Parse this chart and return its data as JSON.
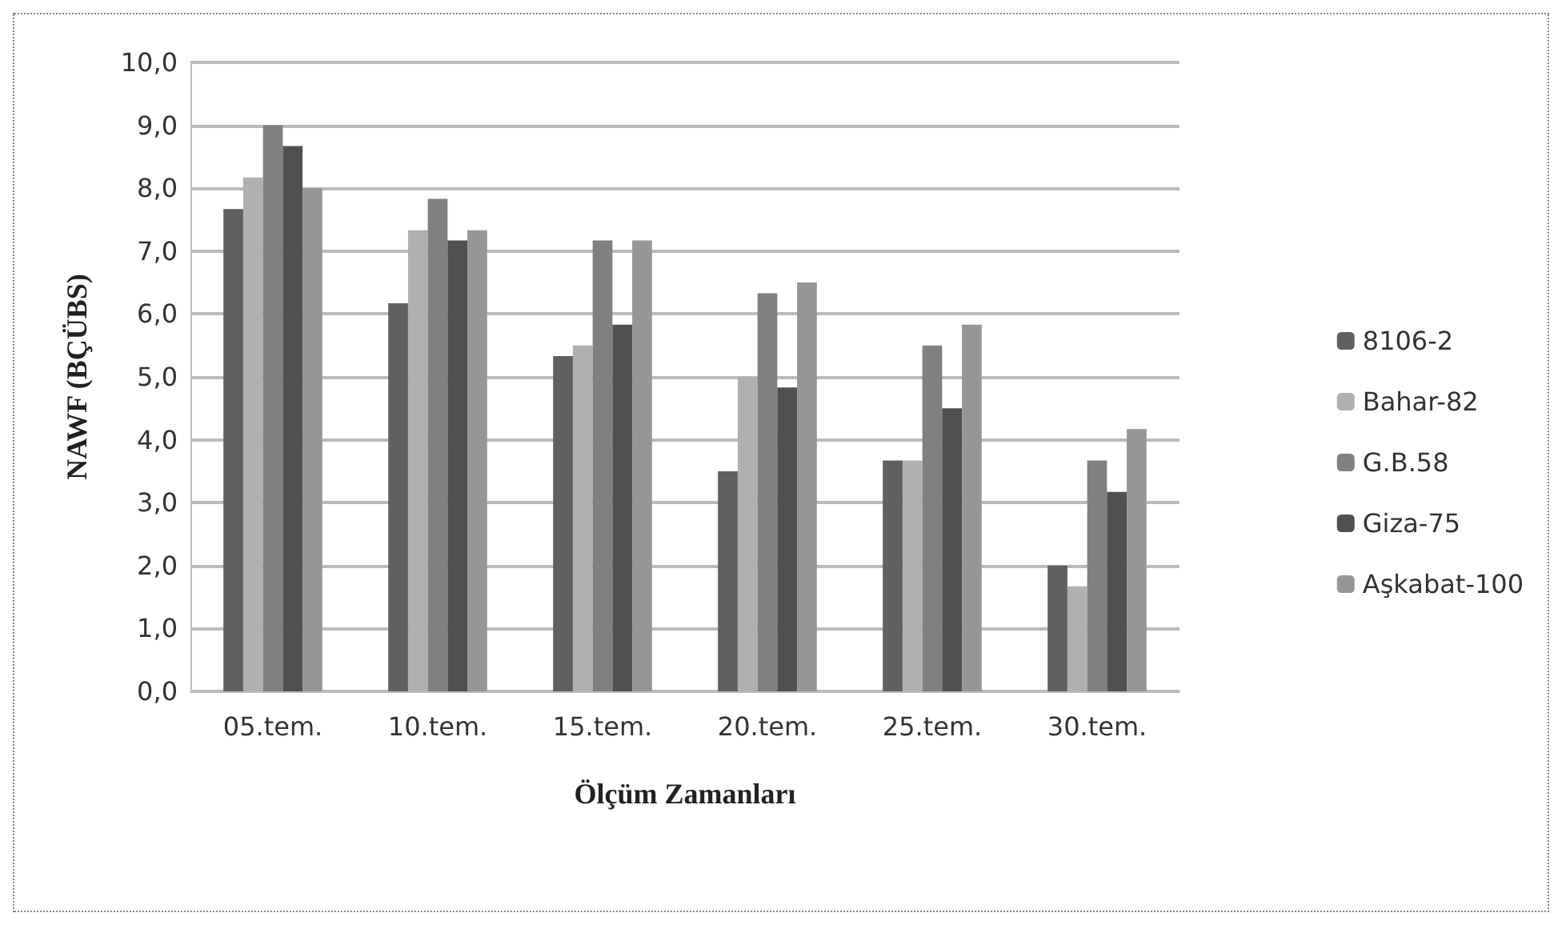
{
  "chart_data": {
    "type": "bar",
    "xlabel": "Ölçüm Zamanları",
    "ylabel": "NAWF (BÇÜBS)",
    "categories": [
      "05.tem.",
      "10.tem.",
      "15.tem.",
      "20.tem.",
      "25.tem.",
      "30.tem."
    ],
    "series": [
      {
        "name": "8106-2",
        "color": "#606060",
        "values": [
          7.67,
          6.17,
          5.33,
          3.5,
          3.67,
          2.0
        ]
      },
      {
        "name": "Bahar-82",
        "color": "#b0b0b0",
        "values": [
          8.17,
          7.33,
          5.5,
          5.0,
          3.67,
          1.67
        ]
      },
      {
        "name": "G.B.58",
        "color": "#808080",
        "values": [
          9.0,
          7.83,
          7.17,
          6.33,
          5.5,
          3.67
        ]
      },
      {
        "name": "Giza-75",
        "color": "#505050",
        "values": [
          8.67,
          7.17,
          5.83,
          4.83,
          4.5,
          3.17
        ]
      },
      {
        "name": "Aşkabat-100",
        "color": "#969696",
        "values": [
          8.0,
          7.33,
          7.17,
          6.5,
          5.83,
          4.17
        ]
      }
    ],
    "ylim": [
      0,
      10
    ],
    "yticks": [
      {
        "value": 0,
        "label": "0,0"
      },
      {
        "value": 1,
        "label": "1,0"
      },
      {
        "value": 2,
        "label": "2,0"
      },
      {
        "value": 3,
        "label": "3,0"
      },
      {
        "value": 4,
        "label": "4,0"
      },
      {
        "value": 5,
        "label": "5,0"
      },
      {
        "value": 6,
        "label": "6,0"
      },
      {
        "value": 7,
        "label": "7,0"
      },
      {
        "value": 8,
        "label": "8,0"
      },
      {
        "value": 9,
        "label": "9,0"
      },
      {
        "value": 10,
        "label": "10,0"
      }
    ],
    "grid": "y",
    "legend": "right"
  }
}
